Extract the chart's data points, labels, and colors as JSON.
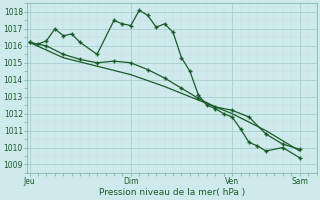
{
  "xlabel": "Pression niveau de la mer( hPa )",
  "bg_color": "#ceeaec",
  "grid_major_color": "#b0d8dc",
  "grid_minor_color": "#d8eef0",
  "line_color": "#1a5c28",
  "ylim": [
    1008.5,
    1018.5
  ],
  "yticks": [
    1009,
    1010,
    1011,
    1012,
    1013,
    1014,
    1015,
    1016,
    1017,
    1018
  ],
  "x_tick_labels": [
    "Jeu",
    "Dim",
    "Ven",
    "Sam"
  ],
  "x_tick_positions": [
    0,
    12,
    24,
    32
  ],
  "xlim": [
    -0.3,
    34
  ],
  "line1_x": [
    0,
    1,
    2,
    3,
    4,
    5,
    6,
    8,
    10,
    11,
    12,
    13,
    14,
    15,
    16,
    17,
    18,
    19,
    20,
    21,
    22,
    23,
    24,
    25,
    26,
    27,
    28,
    30,
    32
  ],
  "line1_y": [
    1016.2,
    1016.1,
    1016.3,
    1017.0,
    1016.6,
    1016.7,
    1016.2,
    1015.5,
    1017.5,
    1017.3,
    1017.2,
    1018.1,
    1017.8,
    1017.1,
    1017.3,
    1016.8,
    1015.3,
    1014.5,
    1013.1,
    1012.5,
    1012.3,
    1012.0,
    1011.8,
    1011.1,
    1010.3,
    1010.1,
    1009.8,
    1010.0,
    1009.4
  ],
  "line2_x": [
    0,
    2,
    4,
    6,
    8,
    10,
    12,
    14,
    16,
    18,
    20,
    22,
    24,
    26,
    28,
    30,
    32
  ],
  "line2_y": [
    1016.2,
    1016.0,
    1015.5,
    1015.2,
    1015.0,
    1015.1,
    1015.0,
    1014.6,
    1014.1,
    1013.5,
    1012.9,
    1012.4,
    1012.2,
    1011.8,
    1010.8,
    1010.2,
    1009.9
  ],
  "line3_x": [
    0,
    4,
    8,
    12,
    16,
    20,
    24,
    28,
    32
  ],
  "line3_y": [
    1016.2,
    1015.3,
    1014.8,
    1014.3,
    1013.6,
    1012.8,
    1012.0,
    1011.0,
    1009.8
  ]
}
